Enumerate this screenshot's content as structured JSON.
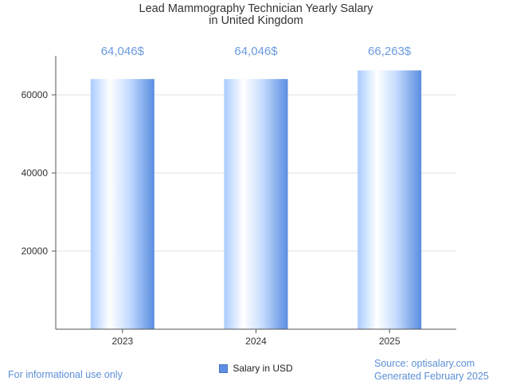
{
  "chart_data": {
    "type": "bar",
    "title": [
      "Lead Mammography Technician Yearly Salary",
      "in United Kingdom"
    ],
    "categories": [
      "2023",
      "2024",
      "2025"
    ],
    "series": [
      {
        "name": "Salary in USD",
        "values": [
          64046,
          64046,
          66263
        ]
      }
    ],
    "data_labels": [
      "64,046$",
      "64,046$",
      "66,263$"
    ],
    "y_ticks": [
      20000,
      40000,
      60000
    ],
    "ylim": [
      0,
      70000
    ],
    "xlabel": "",
    "ylabel": "",
    "grid": true,
    "legend": "bottom-center",
    "colors": {
      "bar_edge": "#5b8fe3",
      "bar_light": "#ffffff",
      "bar_mid": "#cfe3ff",
      "label": "#6b9ae0",
      "grid": "#e2e2e2",
      "axis": "#555555"
    }
  },
  "footer": {
    "left": "For informational use only",
    "source": "Source: optisalary.com",
    "generated": "Generated February 2025"
  }
}
